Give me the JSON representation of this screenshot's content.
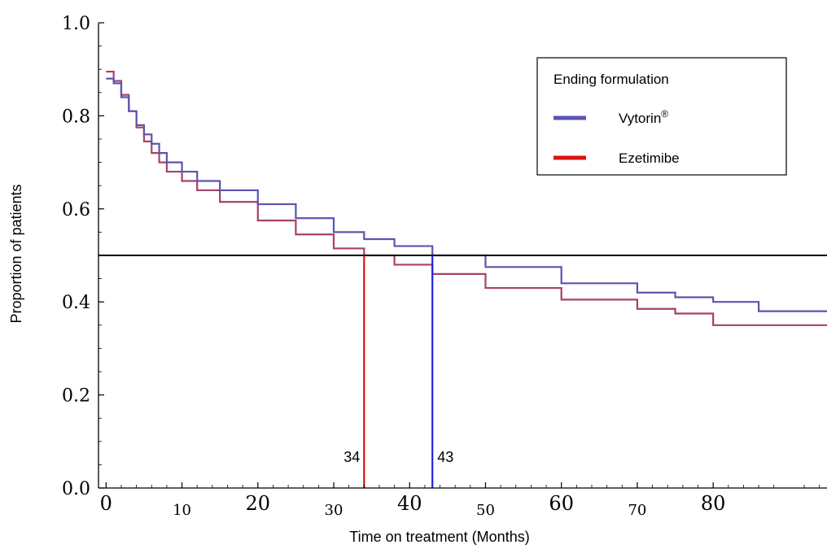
{
  "chart_data": {
    "type": "line",
    "title": "",
    "xlabel": "Time on treatment (Months)",
    "ylabel": "Proportion of patients",
    "xlim": [
      -1,
      95
    ],
    "ylim": [
      0,
      1.0
    ],
    "x_ticks": [
      0,
      10,
      20,
      30,
      40,
      50,
      60,
      70,
      80
    ],
    "y_ticks": [
      "0.0",
      "0.2",
      "0.4",
      "0.6",
      "0.8",
      "1.0"
    ],
    "grid": false,
    "legend": {
      "title": "Ending formulation",
      "placement": "top-right",
      "entries": [
        {
          "label": "Vytorin",
          "superscript": "®",
          "color": "#5a55b0"
        },
        {
          "label": "Ezetimibe",
          "color": "#dd1111"
        }
      ]
    },
    "series": [
      {
        "name": "Vytorin",
        "color": "#5a55b0",
        "step": true,
        "x": [
          0,
          1,
          2,
          3,
          4,
          5,
          6,
          7,
          8,
          10,
          12,
          15,
          20,
          25,
          30,
          34,
          38,
          43,
          50,
          60,
          70,
          75,
          80,
          86,
          95
        ],
        "y": [
          0.88,
          0.87,
          0.84,
          0.81,
          0.78,
          0.76,
          0.74,
          0.72,
          0.7,
          0.68,
          0.66,
          0.64,
          0.61,
          0.58,
          0.55,
          0.535,
          0.52,
          0.5,
          0.475,
          0.44,
          0.42,
          0.41,
          0.4,
          0.38,
          0.38
        ]
      },
      {
        "name": "Ezetimibe",
        "color": "#a8406a",
        "step": true,
        "x": [
          0,
          1,
          2,
          3,
          4,
          5,
          6,
          7,
          8,
          10,
          12,
          15,
          20,
          25,
          30,
          34,
          38,
          43,
          50,
          60,
          70,
          75,
          80,
          95
        ],
        "y": [
          0.895,
          0.875,
          0.845,
          0.81,
          0.775,
          0.745,
          0.72,
          0.7,
          0.68,
          0.66,
          0.64,
          0.615,
          0.575,
          0.545,
          0.515,
          0.5,
          0.48,
          0.46,
          0.43,
          0.405,
          0.385,
          0.375,
          0.35,
          0.35
        ]
      }
    ],
    "reference_line": {
      "y": 0.5,
      "color": "#000000"
    },
    "markers": [
      {
        "label": "34",
        "x": 34,
        "color": "#dd1111"
      },
      {
        "label": "43",
        "x": 43,
        "color": "#2222dd"
      }
    ]
  }
}
